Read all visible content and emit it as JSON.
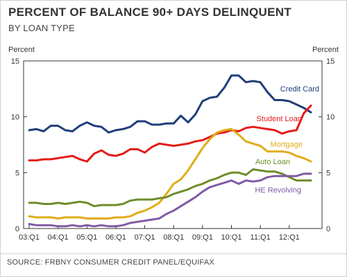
{
  "header": {
    "title": "PERCENT OF BALANCE 90+ DAYS DELINQUENT",
    "subtitle": "BY LOAN TYPE"
  },
  "footer": {
    "source": "SOURCE: FRBNY CONSUMER CREDIT PANEL/EQUIFAX"
  },
  "chart_data": {
    "type": "line",
    "title": "PERCENT OF BALANCE 90+ DAYS DELINQUENT",
    "subtitle": "BY LOAN TYPE",
    "ylabel_left": "Percent",
    "ylabel_right": "Percent",
    "ylim": [
      0,
      15
    ],
    "yticks": [
      0,
      5,
      10,
      15
    ],
    "grid": false,
    "x_count": 40,
    "xtick_labels": [
      "03:Q1",
      "04:Q1",
      "05:Q1",
      "06:Q1",
      "07:Q1",
      "08:Q1",
      "09:Q1",
      "10:Q1",
      "11:Q1",
      "12:Q1"
    ],
    "xtick_every": 4,
    "series": [
      {
        "name": "Credit Card",
        "color": "#1f3d7a",
        "values": [
          8.8,
          8.9,
          8.7,
          9.2,
          9.2,
          8.8,
          8.7,
          9.2,
          9.5,
          9.2,
          9.1,
          8.6,
          8.8,
          8.9,
          9.1,
          9.6,
          9.6,
          9.3,
          9.3,
          9.4,
          9.4,
          10.1,
          9.5,
          10.2,
          11.4,
          11.7,
          11.8,
          12.6,
          13.7,
          13.7,
          13.1,
          13.2,
          13.1,
          12.2,
          11.5,
          11.5,
          11.4,
          11.1,
          10.8,
          10.4
        ]
      },
      {
        "name": "Student Loan",
        "color": "#e41b17",
        "values": [
          6.1,
          6.1,
          6.2,
          6.2,
          6.3,
          6.4,
          6.5,
          6.2,
          6.0,
          6.7,
          7.0,
          6.6,
          6.5,
          6.7,
          7.1,
          7.1,
          6.8,
          7.3,
          7.6,
          7.5,
          7.4,
          7.5,
          7.6,
          7.8,
          7.9,
          8.2,
          8.5,
          8.6,
          8.8,
          8.7,
          9.0,
          9.1,
          9.0,
          8.9,
          8.8,
          8.5,
          8.7,
          8.8,
          10.3,
          11.0
        ]
      },
      {
        "name": "Mortgage",
        "color": "#e0ac18",
        "values": [
          1.1,
          1.0,
          1.0,
          1.0,
          0.9,
          1.0,
          1.0,
          1.0,
          0.9,
          0.9,
          0.9,
          0.9,
          1.0,
          1.0,
          1.1,
          1.4,
          1.6,
          1.9,
          2.3,
          3.1,
          4.0,
          4.4,
          5.2,
          6.2,
          7.2,
          8.0,
          8.6,
          8.8,
          8.9,
          8.4,
          7.8,
          7.6,
          7.4,
          6.9,
          6.9,
          6.9,
          6.8,
          6.5,
          6.3,
          6.0
        ]
      },
      {
        "name": "Auto Loan",
        "color": "#6e8c2a",
        "values": [
          2.3,
          2.3,
          2.2,
          2.2,
          2.3,
          2.2,
          2.3,
          2.4,
          2.3,
          2.0,
          2.1,
          2.1,
          2.1,
          2.2,
          2.5,
          2.6,
          2.6,
          2.6,
          2.7,
          2.8,
          3.1,
          3.3,
          3.5,
          3.8,
          4.0,
          4.3,
          4.5,
          4.8,
          5.0,
          5.0,
          4.8,
          5.3,
          5.2,
          5.1,
          5.1,
          4.9,
          4.6,
          4.3,
          4.3,
          4.3
        ]
      },
      {
        "name": "HE Revolving",
        "color": "#7f5aa6",
        "values": [
          0.4,
          0.3,
          0.3,
          0.3,
          0.2,
          0.2,
          0.3,
          0.2,
          0.3,
          0.2,
          0.3,
          0.2,
          0.2,
          0.3,
          0.5,
          0.6,
          0.7,
          0.8,
          0.9,
          1.3,
          1.6,
          2.0,
          2.4,
          2.8,
          3.3,
          3.7,
          3.9,
          4.1,
          4.3,
          4.0,
          4.3,
          4.2,
          4.3,
          4.6,
          4.7,
          4.7,
          4.7,
          4.7,
          4.9,
          4.9
        ]
      }
    ]
  }
}
